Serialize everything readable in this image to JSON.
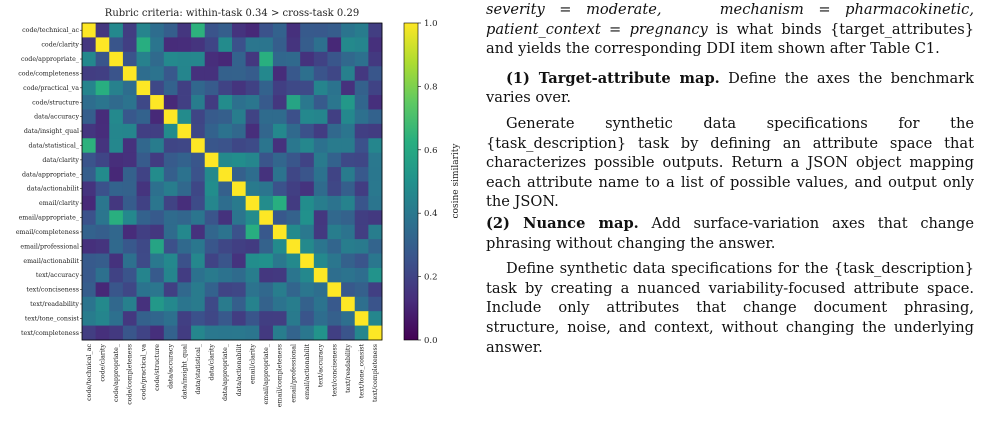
{
  "chart_data": {
    "type": "heatmap",
    "title": "Rubric criteria: within-task 0.34 > cross-task 0.29",
    "labels": [
      "code/technical_ac",
      "code/clarity",
      "code/appropriate_",
      "code/completeness",
      "code/practical_va",
      "code/structure",
      "data/accuracy",
      "data/insight_qual",
      "data/statistical_",
      "data/clarity",
      "data/appropriate_",
      "data/actionabilit",
      "email/clarity",
      "email/appropriate_",
      "email/completeness",
      "email/professional",
      "email/actionabilit",
      "text/accuracy",
      "text/conciseness",
      "text/readability",
      "text/tone_consist",
      "text/completeness"
    ],
    "colorbar_label": "cosine similarity",
    "colorbar_ticks": [
      "0.0",
      "0.2",
      "0.4",
      "0.6",
      "0.8",
      "1.0"
    ],
    "vmin": 0.0,
    "vmax": 1.0,
    "colormap": "viridis",
    "diagonal": 1.0,
    "within_task_mean": 0.34,
    "cross_task_mean": 0.29
  },
  "text": {
    "p0_a": "severity = moderate,",
    "p0_b": "mechanism = pharmacokinetic,",
    "p0_c": "patient_context = pregnancy",
    "p0_d": " is what binds {target_attributes} and yields the corresponding DDI item shown after Table C1.",
    "h1": "(1) Target-attribute map.",
    "h1_rest": " Define the axes the benchmark varies over.",
    "p1": "Generate synthetic data specifications for the {task_description} task by defining an attribute space that characterizes possible outputs. Return a JSON object mapping each attribute name to a list of possible values, and output only the JSON.",
    "h2": "(2) Nuance map.",
    "h2_rest": " Add surface-variation axes that change phrasing without changing the answer.",
    "p2": "Define synthetic data specifications for the {task_description} task by creating a nuanced variability-focused attribute space. Include only attributes that change document phrasing, structure, noise, and context, without changing the underlying answer."
  }
}
